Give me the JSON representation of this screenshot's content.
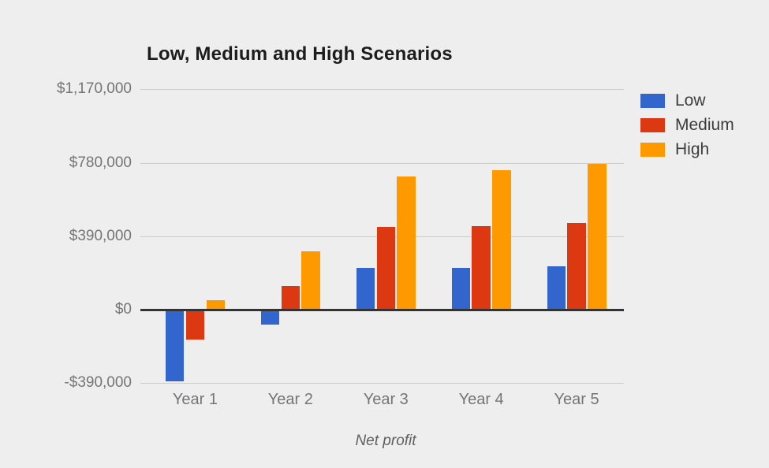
{
  "colors": {
    "background": "#eeeeee",
    "gridline": "#cccccc",
    "zero_axis": "#333333",
    "title_text": "#1c1c1c",
    "tick_text": "#757575",
    "legend_text": "#3d3d3d",
    "xlabel_text": "#5f5f5f"
  },
  "chart_data": {
    "type": "bar",
    "title": "Low, Medium and High Scenarios",
    "xlabel": "Net profit",
    "ylabel": "",
    "grid": true,
    "legend_position": "right",
    "ylim": [
      -390000,
      1170000
    ],
    "categories": [
      "Year 1",
      "Year 2",
      "Year 3",
      "Year 4",
      "Year 5"
    ],
    "series": [
      {
        "name": "Low",
        "color": "#3366cc",
        "values": [
          -380000,
          -80000,
          220000,
          220000,
          230000
        ]
      },
      {
        "name": "Medium",
        "color": "#dc3912",
        "values": [
          -160000,
          125000,
          440000,
          445000,
          460000
        ]
      },
      {
        "name": "High",
        "color": "#ff9900",
        "values": [
          50000,
          310000,
          705000,
          740000,
          775000
        ]
      }
    ],
    "yticks": [
      {
        "label": "$1,170,000",
        "value": 1170000
      },
      {
        "label": "$780,000",
        "value": 780000
      },
      {
        "label": "$390,000",
        "value": 390000
      },
      {
        "label": "$0",
        "value": 0
      },
      {
        "label": "-$390,000",
        "value": -390000
      }
    ]
  }
}
